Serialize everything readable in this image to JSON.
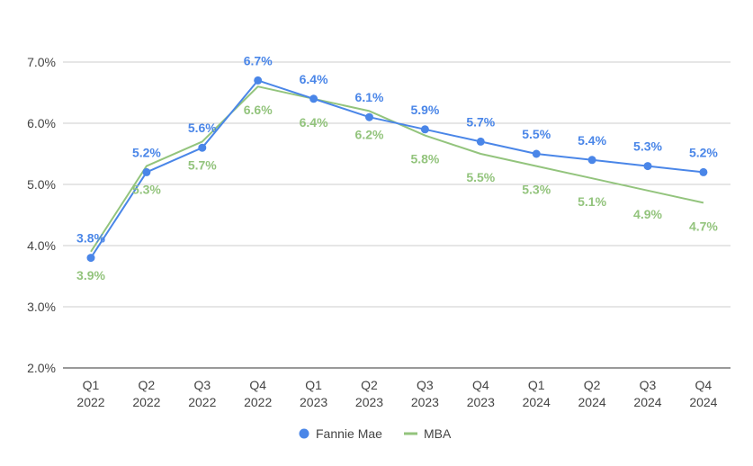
{
  "chart_data": {
    "type": "line",
    "title": "",
    "xlabel": "",
    "ylabel": "",
    "categories": [
      [
        "Q1",
        "2022"
      ],
      [
        "Q2",
        "2022"
      ],
      [
        "Q3",
        "2022"
      ],
      [
        "Q4",
        "2022"
      ],
      [
        "Q1",
        "2023"
      ],
      [
        "Q2",
        "2023"
      ],
      [
        "Q3",
        "2023"
      ],
      [
        "Q4",
        "2023"
      ],
      [
        "Q1",
        "2024"
      ],
      [
        "Q2",
        "2024"
      ],
      [
        "Q3",
        "2024"
      ],
      [
        "Q4",
        "2024"
      ]
    ],
    "ylim": [
      2.0,
      7.0
    ],
    "yticks": [
      2.0,
      3.0,
      4.0,
      5.0,
      6.0,
      7.0
    ],
    "ytick_format": "percent_1dp",
    "grid": true,
    "legend_position": "bottom",
    "series": [
      {
        "name": "Fannie Mae",
        "color": "#4a86e8",
        "marker": "circle",
        "values": [
          3.8,
          5.2,
          5.6,
          6.7,
          6.4,
          6.1,
          5.9,
          5.7,
          5.5,
          5.4,
          5.3,
          5.2
        ],
        "data_labels": [
          "3.8%",
          "5.2%",
          "5.6%",
          "6.7%",
          "6.4%",
          "6.1%",
          "5.9%",
          "5.7%",
          "5.5%",
          "5.4%",
          "5.3%",
          "5.2%"
        ],
        "label_position": "above"
      },
      {
        "name": "MBA",
        "color": "#93c47d",
        "marker": "none",
        "values": [
          3.9,
          5.3,
          5.7,
          6.6,
          6.4,
          6.2,
          5.8,
          5.5,
          5.3,
          5.1,
          4.9,
          4.7
        ],
        "data_labels": [
          "3.9%",
          "5.3%",
          "5.7%",
          "6.6%",
          "6.4%",
          "6.2%",
          "5.8%",
          "5.5%",
          "5.3%",
          "5.1%",
          "4.9%",
          "4.7%"
        ],
        "label_position": "below"
      }
    ]
  }
}
